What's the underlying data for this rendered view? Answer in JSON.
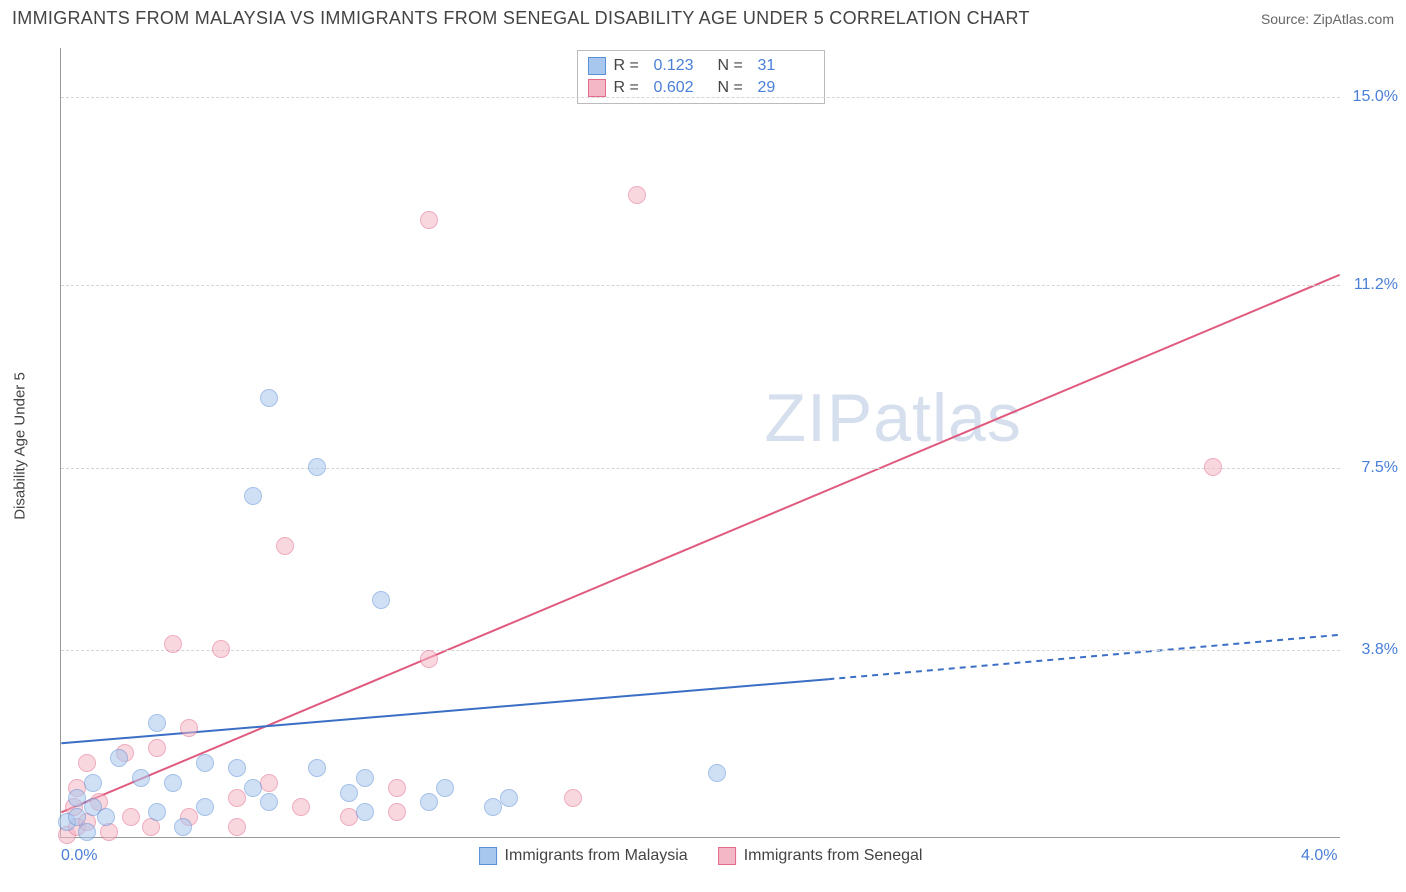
{
  "header": {
    "title": "IMMIGRANTS FROM MALAYSIA VS IMMIGRANTS FROM SENEGAL DISABILITY AGE UNDER 5 CORRELATION CHART",
    "source": "Source: ZipAtlas.com"
  },
  "watermark": {
    "bold": "ZIP",
    "thin": "atlas"
  },
  "chart": {
    "type": "scatter",
    "y_axis_title": "Disability Age Under 5",
    "background_color": "#ffffff",
    "grid_color": "#d5d5d5",
    "axis_color": "#999999",
    "tick_label_color": "#4a7fd8",
    "tick_fontsize": 16,
    "xlim": [
      0.0,
      4.0
    ],
    "ylim": [
      0.0,
      16.0
    ],
    "x_ticks": [
      {
        "value": 0.0,
        "label": "0.0%"
      },
      {
        "value": 4.0,
        "label": "4.0%"
      }
    ],
    "y_ticks": [
      {
        "value": 3.8,
        "label": "3.8%"
      },
      {
        "value": 7.5,
        "label": "7.5%"
      },
      {
        "value": 11.2,
        "label": "11.2%"
      },
      {
        "value": 15.0,
        "label": "15.0%"
      }
    ],
    "series": {
      "malaysia": {
        "label": "Immigrants from Malaysia",
        "r_label": "R =",
        "r_value": "0.123",
        "n_label": "N =",
        "n_value": "31",
        "fill_color": "#a8c7ee",
        "stroke_color": "#5b8fd6",
        "fill_opacity": 0.55,
        "marker_radius": 9,
        "trend": {
          "color": "#3b6fc5",
          "width": 2,
          "solid": {
            "x1": 0.0,
            "y1": 1.9,
            "x2": 2.4,
            "y2": 3.2
          },
          "dashed": {
            "x1": 2.4,
            "y1": 3.2,
            "x2": 4.0,
            "y2": 4.1
          }
        },
        "points": [
          {
            "x": 0.02,
            "y": 0.3
          },
          {
            "x": 0.05,
            "y": 0.4
          },
          {
            "x": 0.05,
            "y": 0.8
          },
          {
            "x": 0.08,
            "y": 0.1
          },
          {
            "x": 0.1,
            "y": 0.6
          },
          {
            "x": 0.1,
            "y": 1.1
          },
          {
            "x": 0.14,
            "y": 0.4
          },
          {
            "x": 0.18,
            "y": 1.6
          },
          {
            "x": 0.25,
            "y": 1.2
          },
          {
            "x": 0.3,
            "y": 0.5
          },
          {
            "x": 0.3,
            "y": 2.3
          },
          {
            "x": 0.35,
            "y": 1.1
          },
          {
            "x": 0.38,
            "y": 0.2
          },
          {
            "x": 0.45,
            "y": 1.5
          },
          {
            "x": 0.45,
            "y": 0.6
          },
          {
            "x": 0.55,
            "y": 1.4
          },
          {
            "x": 0.6,
            "y": 1.0
          },
          {
            "x": 0.6,
            "y": 6.9
          },
          {
            "x": 0.65,
            "y": 0.7
          },
          {
            "x": 0.65,
            "y": 8.9
          },
          {
            "x": 0.8,
            "y": 1.4
          },
          {
            "x": 0.8,
            "y": 7.5
          },
          {
            "x": 0.9,
            "y": 0.9
          },
          {
            "x": 0.95,
            "y": 1.2
          },
          {
            "x": 0.95,
            "y": 0.5
          },
          {
            "x": 1.0,
            "y": 4.8
          },
          {
            "x": 1.15,
            "y": 0.7
          },
          {
            "x": 1.2,
            "y": 1.0
          },
          {
            "x": 1.35,
            "y": 0.6
          },
          {
            "x": 1.4,
            "y": 0.8
          },
          {
            "x": 2.05,
            "y": 1.3
          }
        ]
      },
      "senegal": {
        "label": "Immigrants from Senegal",
        "r_label": "R =",
        "r_value": "0.602",
        "n_label": "N =",
        "n_value": "29",
        "fill_color": "#f4b7c6",
        "stroke_color": "#e26a8b",
        "fill_opacity": 0.55,
        "marker_radius": 9,
        "trend": {
          "color": "#e05a7e",
          "width": 2,
          "solid": {
            "x1": 0.0,
            "y1": 0.5,
            "x2": 4.0,
            "y2": 11.4
          },
          "dashed": null
        },
        "points": [
          {
            "x": 0.02,
            "y": 0.05
          },
          {
            "x": 0.04,
            "y": 0.6
          },
          {
            "x": 0.05,
            "y": 0.2
          },
          {
            "x": 0.05,
            "y": 1.0
          },
          {
            "x": 0.08,
            "y": 0.3
          },
          {
            "x": 0.08,
            "y": 1.5
          },
          {
            "x": 0.12,
            "y": 0.7
          },
          {
            "x": 0.15,
            "y": 0.1
          },
          {
            "x": 0.2,
            "y": 1.7
          },
          {
            "x": 0.22,
            "y": 0.4
          },
          {
            "x": 0.28,
            "y": 0.2
          },
          {
            "x": 0.3,
            "y": 1.8
          },
          {
            "x": 0.35,
            "y": 3.9
          },
          {
            "x": 0.4,
            "y": 2.2
          },
          {
            "x": 0.4,
            "y": 0.4
          },
          {
            "x": 0.5,
            "y": 3.8
          },
          {
            "x": 0.55,
            "y": 0.8
          },
          {
            "x": 0.55,
            "y": 0.2
          },
          {
            "x": 0.65,
            "y": 1.1
          },
          {
            "x": 0.7,
            "y": 5.9
          },
          {
            "x": 0.75,
            "y": 0.6
          },
          {
            "x": 0.9,
            "y": 0.4
          },
          {
            "x": 1.05,
            "y": 1.0
          },
          {
            "x": 1.15,
            "y": 3.6
          },
          {
            "x": 1.05,
            "y": 0.5
          },
          {
            "x": 1.15,
            "y": 12.5
          },
          {
            "x": 1.6,
            "y": 0.8
          },
          {
            "x": 1.8,
            "y": 13.0
          },
          {
            "x": 3.6,
            "y": 7.5
          }
        ]
      }
    }
  }
}
